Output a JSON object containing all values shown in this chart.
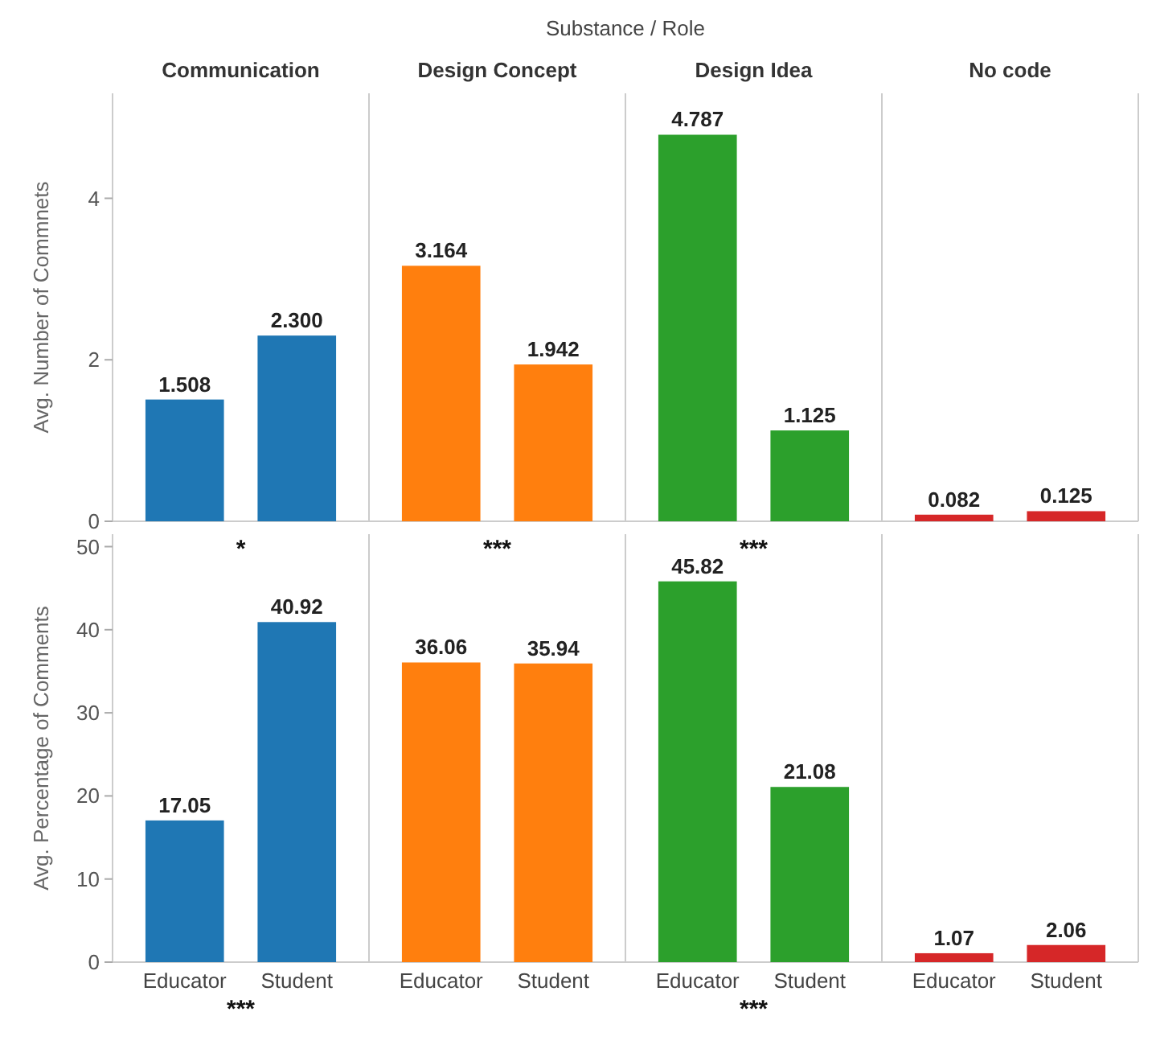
{
  "chart_data": [
    {
      "type": "bar",
      "ylabel": "Avg. Number of Commnets",
      "annotations": [
        "Substance / Role",
        "Communication",
        "Design Concept",
        "Design Idea",
        "No code"
      ],
      "categories": [
        null,
        null,
        null,
        null,
        null,
        null,
        null,
        null
      ],
      "values": [
        1.508,
        2.3,
        3.164,
        1.942,
        4.787,
        1.125,
        0.082,
        0.125
      ],
      "value_labels": [
        "1.508",
        "2.300",
        "3.164",
        "1.942",
        "4.787",
        "1.125",
        "0.082",
        "0.125"
      ],
      "colors": [
        "#1f77b4",
        "#1f77b4",
        "#ff7f0e",
        "#ff7f0e",
        "#2ca02c",
        "#2ca02c",
        "#d62728",
        "#d62728"
      ],
      "ylim": [
        0,
        5.3
      ],
      "yticks": [
        0,
        2,
        4
      ],
      "tick_labels": "y"
    },
    {
      "type": "bar",
      "ylabel": "Avg. Percentage of Comments",
      "annotations": [
        "*",
        "***",
        "***",
        "***",
        "***"
      ],
      "categories": [
        "Educator",
        "Student",
        "Educator",
        "Student",
        "Educator",
        "Student",
        "Educator",
        "Student"
      ],
      "values": [
        17.05,
        40.92,
        36.06,
        35.94,
        45.82,
        21.08,
        1.07,
        2.06
      ],
      "value_labels": [
        "17.05",
        "40.92",
        "36.06",
        "35.94",
        "45.82",
        "21.08",
        "1.07",
        "2.06"
      ],
      "colors": [
        "#1f77b4",
        "#1f77b4",
        "#ff7f0e",
        "#ff7f0e",
        "#2ca02c",
        "#2ca02c",
        "#d62728",
        "#d62728"
      ],
      "ylim": [
        0,
        51.5
      ],
      "yticks": [
        0,
        10,
        20,
        30,
        40,
        50
      ]
    }
  ]
}
